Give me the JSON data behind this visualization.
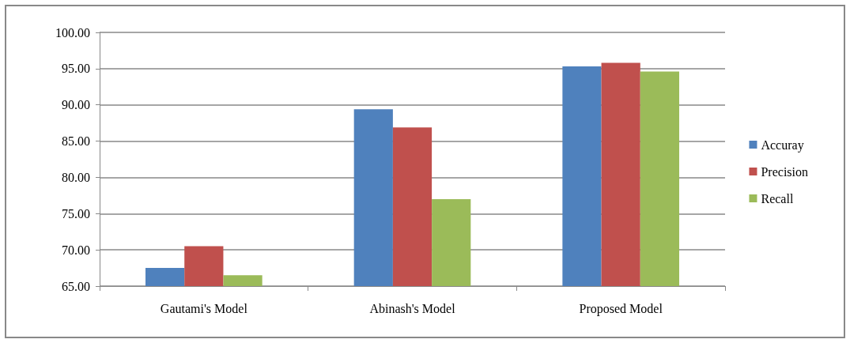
{
  "chart_data": {
    "type": "bar",
    "categories": [
      "Gautami's Model",
      "Abinash's Model",
      "Proposed Model"
    ],
    "series": [
      {
        "name": "Accuray",
        "color": "#4f81bd",
        "values": [
          67.5,
          89.4,
          95.3
        ]
      },
      {
        "name": "Precision",
        "color": "#c0504d",
        "values": [
          70.5,
          86.9,
          95.8
        ]
      },
      {
        "name": "Recall",
        "color": "#9bbb59",
        "values": [
          66.5,
          77.0,
          94.6
        ]
      }
    ],
    "ylim": [
      65,
      100
    ],
    "yticks": [
      {
        "value": 65,
        "label": "65.00"
      },
      {
        "value": 70,
        "label": "70.00"
      },
      {
        "value": 75,
        "label": "75.00"
      },
      {
        "value": 80,
        "label": "80.00"
      },
      {
        "value": 85,
        "label": "85.00"
      },
      {
        "value": 90,
        "label": "90.00"
      },
      {
        "value": 95,
        "label": "95.00"
      },
      {
        "value": 100,
        "label": "100.00"
      }
    ],
    "grid": "y",
    "legend": "right"
  }
}
